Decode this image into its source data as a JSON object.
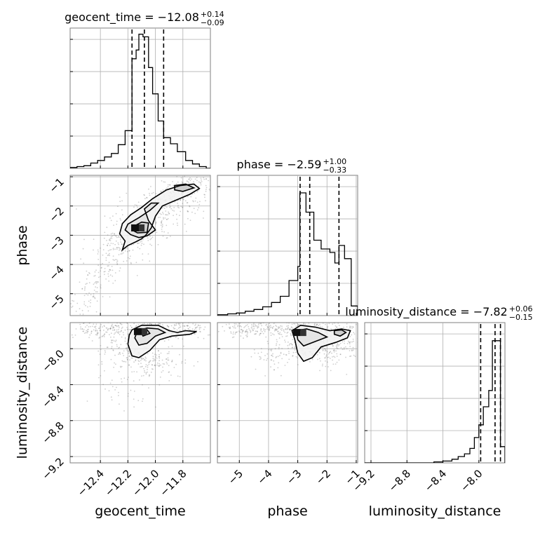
{
  "chart_data": {
    "type": "corner",
    "parameters": [
      "geocent_time",
      "phase",
      "luminosity_distance"
    ],
    "colors": {
      "ink": "#000000",
      "frame": "#7f7f7f",
      "grid": "#b0b0b0",
      "points": "#6b6b6b"
    },
    "diagonal": [
      {
        "parameter": "geocent_time",
        "title_main": "geocent_time = −12.08",
        "title_plus": "+0.14",
        "title_minus": "−0.09",
        "range": [
          -12.62,
          -11.6
        ],
        "ticks": [
          -12.4,
          -12.2,
          -12.0,
          -11.8
        ],
        "tick_labels": [
          "−12.4",
          "−12.2",
          "−12.0",
          "−11.8"
        ],
        "quantiles": [
          -12.17,
          -12.08,
          -11.94
        ],
        "bin_edges": [
          -12.62,
          -12.57,
          -12.52,
          -12.47,
          -12.42,
          -12.37,
          -12.32,
          -12.27,
          -12.22,
          -12.17,
          -12.14,
          -12.12,
          -12.09,
          -12.05,
          -12.02,
          -11.98,
          -11.94,
          -11.89,
          -11.84,
          -11.78,
          -11.73,
          -11.68,
          -11.63,
          -11.6
        ],
        "counts": [
          1,
          2,
          3,
          6,
          9,
          13,
          17,
          27,
          43,
          125,
          135,
          153,
          150,
          115,
          85,
          54,
          35,
          28,
          19,
          9,
          5,
          2,
          0
        ],
        "count_max": 160
      },
      {
        "parameter": "phase",
        "title_main": "phase = −2.59",
        "title_plus": "+1.00",
        "title_minus": "−0.33",
        "range": [
          -5.75,
          -0.95
        ],
        "ticks": [
          -5,
          -4,
          -3,
          -2,
          -1
        ],
        "tick_labels": [
          "−5",
          "−4",
          "−3",
          "−2",
          "−1"
        ],
        "quantiles": [
          -2.92,
          -2.59,
          -1.59
        ],
        "bin_edges": [
          -5.75,
          -5.4,
          -5.1,
          -4.8,
          -4.5,
          -4.2,
          -3.9,
          -3.6,
          -3.3,
          -3.0,
          -2.93,
          -2.72,
          -2.45,
          -2.2,
          -1.9,
          -1.73,
          -1.59,
          -1.4,
          -1.17,
          -0.95
        ],
        "counts": [
          1,
          2,
          3,
          5,
          7,
          10,
          15,
          22,
          40,
          56,
          140,
          118,
          86,
          76,
          72,
          60,
          80,
          65,
          11
        ],
        "count_max": 160
      },
      {
        "parameter": "luminosity_distance",
        "title_main": "luminosity_distance = −7.82",
        "title_plus": "+0.06",
        "title_minus": "−0.15",
        "range": [
          -9.27,
          -7.71
        ],
        "ticks": [
          -9.2,
          -8.8,
          -8.4,
          -8.0
        ],
        "tick_labels": [
          "−9.2",
          "−8.8",
          "−8.4",
          "−8.0"
        ],
        "quantiles": [
          -7.98,
          -7.82,
          -7.76
        ],
        "bin_edges": [
          -9.27,
          -8.5,
          -8.4,
          -8.3,
          -8.23,
          -8.16,
          -8.1,
          -8.05,
          -8.0,
          -7.95,
          -7.89,
          -7.85,
          -7.8,
          -7.76,
          -7.71
        ],
        "counts": [
          0,
          1,
          2,
          4,
          7,
          10,
          16,
          28,
          42,
          62,
          80,
          135,
          135,
          18
        ],
        "count_max": 155
      }
    ],
    "ylabels": {
      "phase": "phase",
      "luminosity_distance": "luminosity_distance"
    },
    "xlabels": {
      "geocent_time": "geocent_time",
      "phase": "phase",
      "luminosity_distance": "luminosity_distance"
    },
    "offdiagonal": [
      {
        "x": "geocent_time",
        "y": "phase",
        "x_range": [
          -12.62,
          -11.6
        ],
        "y_range": [
          -5.75,
          -0.95
        ],
        "y_ticks": [
          -5,
          -4,
          -3,
          -2,
          -1
        ],
        "y_tick_labels": [
          "−5",
          "−4",
          "−3",
          "−2",
          "−1"
        ],
        "peak": [
          -12.12,
          -2.75
        ],
        "contours": [
          [
            [
              -12.24,
              -2.6
            ],
            [
              -12.18,
              -2.3
            ],
            [
              -12.1,
              -2.05
            ],
            [
              -12.02,
              -1.75
            ],
            [
              -11.92,
              -1.45
            ],
            [
              -11.82,
              -1.3
            ],
            [
              -11.72,
              -1.25
            ],
            [
              -11.68,
              -1.4
            ],
            [
              -11.75,
              -1.6
            ],
            [
              -11.85,
              -1.8
            ],
            [
              -11.95,
              -2.0
            ],
            [
              -12.0,
              -2.35
            ],
            [
              -12.03,
              -2.75
            ],
            [
              -12.07,
              -3.0
            ],
            [
              -12.1,
              -3.12
            ],
            [
              -12.14,
              -3.22
            ],
            [
              -12.2,
              -3.35
            ],
            [
              -12.24,
              -3.5
            ],
            [
              -12.22,
              -3.2
            ],
            [
              -12.26,
              -2.95
            ]
          ],
          [
            [
              -12.2,
              -2.62
            ],
            [
              -12.12,
              -2.4
            ],
            [
              -12.04,
              -2.15
            ],
            [
              -11.98,
              -1.9
            ],
            [
              -12.03,
              -1.9
            ],
            [
              -12.08,
              -2.1
            ],
            [
              -12.05,
              -2.5
            ],
            [
              -12.0,
              -2.82
            ],
            [
              -12.06,
              -3.02
            ],
            [
              -12.12,
              -3.08
            ],
            [
              -12.18,
              -2.98
            ],
            [
              -12.22,
              -2.82
            ]
          ],
          [
            [
              -12.16,
              -2.7
            ],
            [
              -12.1,
              -2.55
            ],
            [
              -12.05,
              -2.58
            ],
            [
              -12.06,
              -2.9
            ],
            [
              -12.13,
              -2.92
            ],
            [
              -12.17,
              -2.82
            ]
          ],
          [
            [
              -11.86,
              -1.3
            ],
            [
              -11.78,
              -1.25
            ],
            [
              -11.72,
              -1.38
            ],
            [
              -11.8,
              -1.5
            ],
            [
              -11.86,
              -1.45
            ]
          ]
        ],
        "cloud": [
          {
            "from": [
              -12.58,
              -5.6
            ],
            "to": [
              -12.2,
              -3.2
            ],
            "spread": [
              0.05,
              0.35
            ],
            "n": 160
          },
          {
            "from": [
              -12.3,
              -3.5
            ],
            "to": [
              -11.75,
              -1.35
            ],
            "spread": [
              0.12,
              0.3
            ],
            "n": 420
          },
          {
            "from": [
              -12.0,
              -1.8
            ],
            "to": [
              -11.62,
              -1.05
            ],
            "spread": [
              0.06,
              0.2
            ],
            "n": 110
          }
        ]
      },
      {
        "x": "geocent_time",
        "y": "luminosity_distance",
        "x_range": [
          -12.62,
          -11.6
        ],
        "y_range": [
          -9.27,
          -7.71
        ],
        "y_ticks": [
          -9.2,
          -8.8,
          -8.4,
          -8.0
        ],
        "y_tick_labels": [
          "−9.2",
          "−8.8",
          "−8.4",
          "−8.0"
        ],
        "peak": [
          -12.1,
          -7.81
        ],
        "contours": [
          [
            [
              -12.17,
              -7.79
            ],
            [
              -12.1,
              -7.74
            ],
            [
              -11.98,
              -7.74
            ],
            [
              -11.9,
              -7.8
            ],
            [
              -11.84,
              -7.82
            ],
            [
              -11.78,
              -7.8
            ],
            [
              -11.7,
              -7.81
            ],
            [
              -11.75,
              -7.84
            ],
            [
              -11.88,
              -7.86
            ],
            [
              -11.97,
              -7.9
            ],
            [
              -12.04,
              -8.02
            ],
            [
              -12.12,
              -8.1
            ],
            [
              -12.17,
              -8.08
            ],
            [
              -12.2,
              -7.95
            ],
            [
              -12.19,
              -7.85
            ]
          ],
          [
            [
              -12.13,
              -7.8
            ],
            [
              -12.06,
              -7.77
            ],
            [
              -11.98,
              -7.78
            ],
            [
              -11.93,
              -7.82
            ],
            [
              -12.0,
              -7.86
            ],
            [
              -12.06,
              -7.94
            ],
            [
              -12.12,
              -7.96
            ],
            [
              -12.15,
              -7.88
            ]
          ],
          [
            [
              -12.11,
              -7.8
            ],
            [
              -12.06,
              -7.79
            ],
            [
              -12.04,
              -7.83
            ],
            [
              -12.09,
              -7.86
            ]
          ]
        ],
        "cloud": [
          {
            "from": [
              -12.55,
              -7.78
            ],
            "to": [
              -11.65,
              -7.78
            ],
            "spread": [
              0.04,
              0.06
            ],
            "n": 380
          },
          {
            "from": [
              -12.3,
              -8.0
            ],
            "to": [
              -11.9,
              -8.2
            ],
            "spread": [
              0.1,
              0.08
            ],
            "n": 220
          },
          {
            "from": [
              -12.4,
              -8.3
            ],
            "to": [
              -12.1,
              -8.6
            ],
            "spread": [
              0.08,
              0.12
            ],
            "n": 40
          }
        ]
      },
      {
        "x": "phase",
        "y": "luminosity_distance",
        "x_range": [
          -5.75,
          -0.95
        ],
        "y_range": [
          -9.27,
          -7.71
        ],
        "y_ticks": [],
        "y_tick_labels": [],
        "peak": [
          -2.9,
          -7.82
        ],
        "contours": [
          [
            [
              -3.2,
              -7.8
            ],
            [
              -2.9,
              -7.74
            ],
            [
              -2.4,
              -7.76
            ],
            [
              -1.9,
              -7.8
            ],
            [
              -1.5,
              -7.78
            ],
            [
              -1.2,
              -7.8
            ],
            [
              -1.3,
              -7.88
            ],
            [
              -1.7,
              -7.93
            ],
            [
              -2.2,
              -7.98
            ],
            [
              -2.5,
              -8.1
            ],
            [
              -2.8,
              -8.14
            ],
            [
              -3.0,
              -8.05
            ],
            [
              -3.1,
              -7.9
            ]
          ],
          [
            [
              -3.05,
              -7.8
            ],
            [
              -2.7,
              -7.78
            ],
            [
              -2.3,
              -7.82
            ],
            [
              -2.0,
              -7.87
            ],
            [
              -2.4,
              -7.92
            ],
            [
              -2.8,
              -7.97
            ],
            [
              -3.0,
              -7.9
            ]
          ],
          [
            [
              -1.75,
              -7.8
            ],
            [
              -1.5,
              -7.79
            ],
            [
              -1.35,
              -7.82
            ],
            [
              -1.55,
              -7.86
            ],
            [
              -1.75,
              -7.84
            ]
          ]
        ],
        "cloud": [
          {
            "from": [
              -5.5,
              -7.78
            ],
            "to": [
              -1.1,
              -7.78
            ],
            "spread": [
              0.25,
              0.05
            ],
            "n": 380
          },
          {
            "from": [
              -3.4,
              -7.95
            ],
            "to": [
              -1.2,
              -8.0
            ],
            "spread": [
              0.35,
              0.1
            ],
            "n": 260
          },
          {
            "from": [
              -4.4,
              -8.05
            ],
            "to": [
              -3.4,
              -8.1
            ],
            "spread": [
              0.3,
              0.08
            ],
            "n": 60
          }
        ]
      }
    ]
  }
}
